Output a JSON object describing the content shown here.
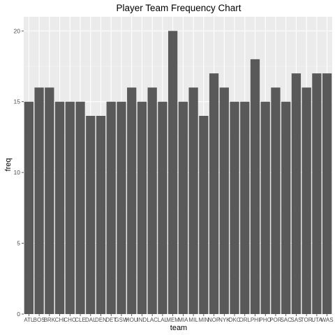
{
  "chart_data": {
    "type": "bar",
    "title": "Player Team Frequency Chart",
    "xlabel": "team",
    "ylabel": "freq",
    "ylim": [
      0,
      21
    ],
    "yticks": [
      0,
      5,
      10,
      15,
      20
    ],
    "grid": true,
    "categories": [
      "ATL",
      "BOS",
      "BRK",
      "CHI",
      "CHO",
      "CLE",
      "DAL",
      "DEN",
      "DET",
      "GSW",
      "HOU",
      "IND",
      "LAC",
      "LAL",
      "MEM",
      "MIA",
      "MIL",
      "MIN",
      "NOP",
      "NYK",
      "OKC",
      "ORL",
      "PHI",
      "PHO",
      "POR",
      "SAC",
      "SAS",
      "TOR",
      "UTA",
      "WAS"
    ],
    "values": [
      15,
      16,
      16,
      15,
      15,
      15,
      14,
      14,
      15,
      15,
      16,
      15,
      16,
      15,
      20,
      15,
      16,
      14,
      17,
      16,
      15,
      15,
      18,
      15,
      16,
      15,
      17,
      16,
      17,
      17
    ],
    "colors": {
      "panel": "#ebebeb",
      "grid_major": "#ffffff",
      "grid_minor": "#f5f5f5",
      "bar": "#595959"
    }
  }
}
